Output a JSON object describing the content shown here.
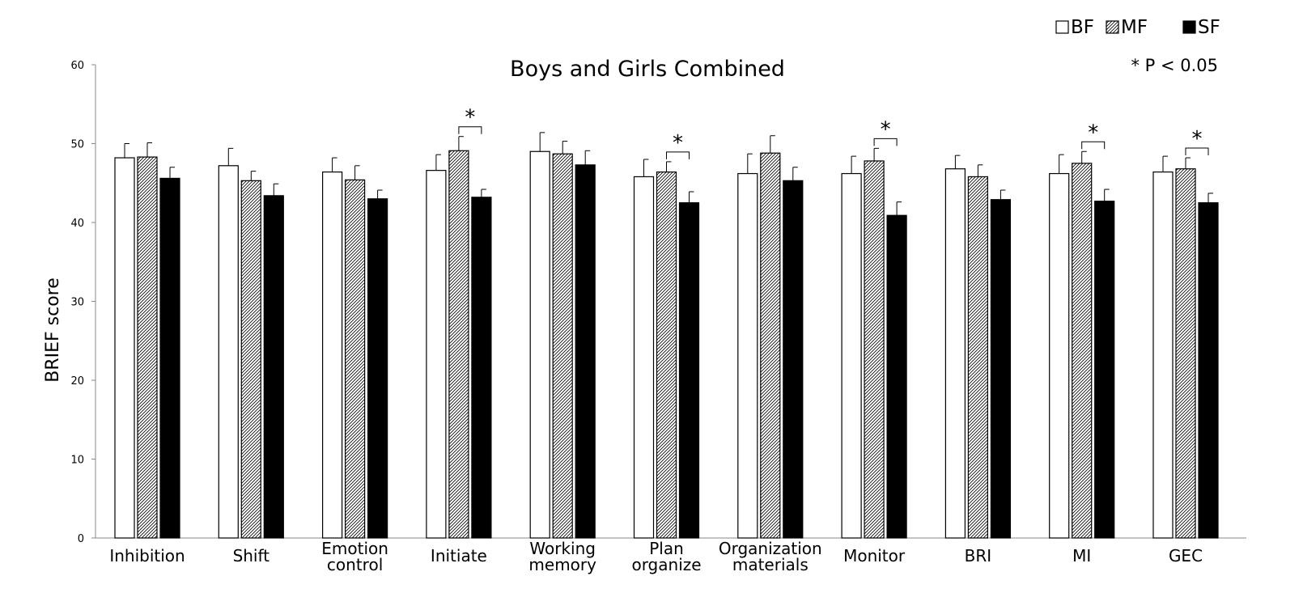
{
  "chart_data": {
    "type": "bar",
    "title": "Boys and Girls Combined",
    "ylabel": "BRIEF score",
    "xlabel": "",
    "ylim": [
      0,
      60
    ],
    "yticks": [
      0,
      10,
      20,
      30,
      40,
      50,
      60
    ],
    "grid": false,
    "legend_position": "top-right",
    "note": "* P < 0.05",
    "categories": [
      [
        "Inhibition"
      ],
      [
        "Shift"
      ],
      [
        "Emotion",
        "control"
      ],
      [
        "Initiate"
      ],
      [
        "Working",
        "memory"
      ],
      [
        "Plan",
        "organize"
      ],
      [
        "Organization",
        "materials"
      ],
      [
        "Monitor"
      ],
      [
        "BRI"
      ],
      [
        "MI"
      ],
      [
        "GEC"
      ]
    ],
    "series": [
      {
        "name": "BF",
        "style": "open",
        "values": [
          48.2,
          47.2,
          46.4,
          46.6,
          49.0,
          45.8,
          46.2,
          46.2,
          46.8,
          46.2,
          46.4
        ],
        "errors": [
          1.8,
          2.2,
          1.8,
          2.0,
          2.4,
          2.2,
          2.5,
          2.2,
          1.7,
          2.4,
          2.0
        ]
      },
      {
        "name": "MF",
        "style": "hatched",
        "values": [
          48.3,
          45.3,
          45.4,
          49.1,
          48.7,
          46.4,
          48.8,
          47.8,
          45.8,
          47.5,
          46.8
        ],
        "errors": [
          1.8,
          1.2,
          1.8,
          1.8,
          1.6,
          1.3,
          2.2,
          1.6,
          1.5,
          1.5,
          1.4
        ]
      },
      {
        "name": "SF",
        "style": "solid",
        "values": [
          45.6,
          43.4,
          43.0,
          43.2,
          47.3,
          42.5,
          45.3,
          40.9,
          42.9,
          42.7,
          42.5
        ],
        "errors": [
          1.4,
          1.5,
          1.1,
          1.0,
          1.8,
          1.4,
          1.7,
          1.7,
          1.2,
          1.5,
          1.2
        ]
      }
    ],
    "significance": [
      {
        "category_index": 3,
        "between": [
          "MF",
          "SF"
        ],
        "label": "*"
      },
      {
        "category_index": 5,
        "between": [
          "MF",
          "SF"
        ],
        "label": "*"
      },
      {
        "category_index": 7,
        "between": [
          "MF",
          "SF"
        ],
        "label": "*"
      },
      {
        "category_index": 9,
        "between": [
          "MF",
          "SF"
        ],
        "label": "*"
      },
      {
        "category_index": 10,
        "between": [
          "MF",
          "SF"
        ],
        "label": "*"
      }
    ],
    "colors": {
      "open": "#ffffff",
      "solid": "#000000",
      "edge": "#000000",
      "axis": "#888888",
      "hatch": "#000000"
    }
  }
}
